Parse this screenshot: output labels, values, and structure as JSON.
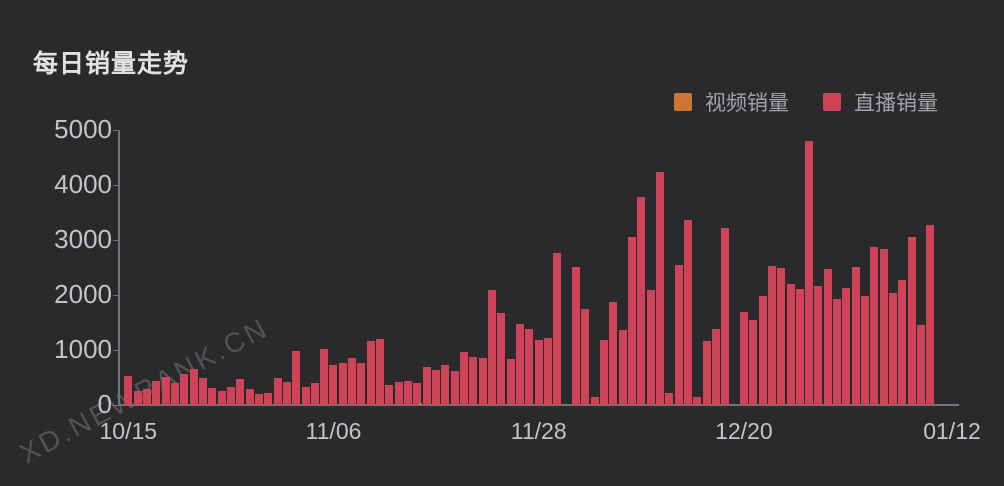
{
  "title": "每日销量走势",
  "watermark": "XD.NEWRANK.CN",
  "legend": [
    {
      "label": "视频销量",
      "color": "#cd7532"
    },
    {
      "label": "直播销量",
      "color": "#ce4357"
    }
  ],
  "colors": {
    "background": "#2a2a2c",
    "axis": "#73737a",
    "tick_text": "#c4c4c8",
    "legend_text": "#a2a2a7",
    "title_text": "#e2e2e4",
    "video_series": "#cd7532",
    "live_series": "#ce4357"
  },
  "chart_data": {
    "type": "bar",
    "title": "每日销量走势",
    "xlabel": "",
    "ylabel": "",
    "ylim": [
      0,
      5000
    ],
    "yticks": [
      0,
      1000,
      2000,
      3000,
      4000,
      5000
    ],
    "xticks_shown": [
      "10/15",
      "11/06",
      "11/28",
      "12/20",
      "01/12"
    ],
    "grid": false,
    "legend_position": "top-right",
    "categories": [
      "10/15",
      "10/16",
      "10/17",
      "10/18",
      "10/19",
      "10/20",
      "10/21",
      "10/22",
      "10/23",
      "10/24",
      "10/25",
      "10/26",
      "10/27",
      "10/28",
      "10/29",
      "10/30",
      "10/31",
      "11/01",
      "11/02",
      "11/03",
      "11/04",
      "11/05",
      "11/06",
      "11/07",
      "11/08",
      "11/09",
      "11/10",
      "11/11",
      "11/12",
      "11/13",
      "11/14",
      "11/15",
      "11/16",
      "11/17",
      "11/18",
      "11/19",
      "11/20",
      "11/21",
      "11/22",
      "11/23",
      "11/24",
      "11/25",
      "11/26",
      "11/27",
      "11/28",
      "11/29",
      "11/30",
      "12/01",
      "12/02",
      "12/03",
      "12/04",
      "12/05",
      "12/06",
      "12/07",
      "12/08",
      "12/09",
      "12/10",
      "12/11",
      "12/12",
      "12/13",
      "12/14",
      "12/15",
      "12/16",
      "12/17",
      "12/18",
      "12/19",
      "12/20",
      "12/21",
      "12/22",
      "12/23",
      "12/24",
      "12/25",
      "12/26",
      "12/27",
      "12/28",
      "12/29",
      "12/30",
      "12/31",
      "01/01",
      "01/02",
      "01/03",
      "01/04",
      "01/05",
      "01/06",
      "01/07",
      "01/08",
      "01/09",
      "01/10",
      "01/11",
      "01/12"
    ],
    "series": [
      {
        "name": "视频销量",
        "color": "#cd7532",
        "values": [
          0,
          0,
          0,
          0,
          0,
          0,
          0,
          0,
          0,
          0,
          0,
          0,
          0,
          0,
          0,
          0,
          0,
          0,
          0,
          0,
          0,
          0,
          0,
          0,
          0,
          0,
          0,
          0,
          0,
          0,
          0,
          0,
          25,
          0,
          0,
          0,
          0,
          0,
          0,
          0,
          0,
          0,
          0,
          0,
          0,
          0,
          0,
          0,
          0,
          0,
          0,
          0,
          0,
          0,
          0,
          0,
          0,
          0,
          0,
          0,
          0,
          0,
          0,
          0,
          0,
          0,
          0,
          0,
          0,
          0,
          0,
          0,
          0,
          0,
          0,
          0,
          0,
          0,
          0,
          0,
          0,
          0,
          0,
          0,
          0,
          0,
          0,
          0,
          0,
          0
        ]
      },
      {
        "name": "直播销量",
        "color": "#ce4357",
        "values": [
          520,
          250,
          300,
          445,
          505,
          395,
          560,
          650,
          490,
          305,
          260,
          335,
          470,
          290,
          200,
          225,
          490,
          420,
          990,
          335,
          395,
          1010,
          725,
          760,
          850,
          770,
          1155,
          1200,
          365,
          420,
          430,
          395,
          685,
          645,
          725,
          620,
          960,
          880,
          850,
          2100,
          1680,
          835,
          1470,
          1390,
          1190,
          1220,
          2770,
          0,
          2505,
          1750,
          150,
          1185,
          1865,
          1370,
          3050,
          3785,
          2100,
          4230,
          225,
          2540,
          3360,
          150,
          1155,
          1380,
          3220,
          0,
          1685,
          1550,
          1975,
          2520,
          2490,
          2200,
          2105,
          4800,
          2170,
          2480,
          1920,
          2130,
          2510,
          1980,
          2880,
          2830,
          2030,
          2280,
          3060,
          1450,
          3280,
          0,
          0,
          0
        ]
      }
    ]
  }
}
